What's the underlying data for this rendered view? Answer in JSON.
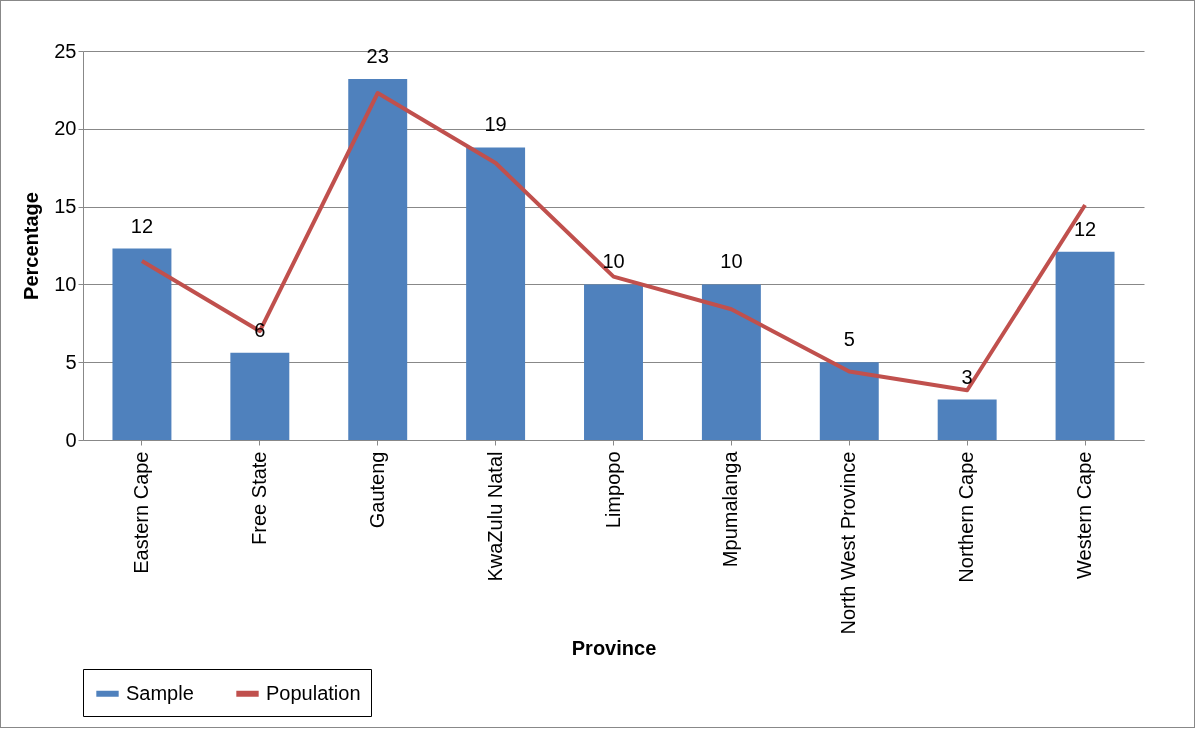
{
  "chart_data": {
    "type": "bar",
    "xlabel": "Province",
    "ylabel": "Percentage",
    "categories": [
      "Eastern Cape",
      "Free State",
      "Gauteng",
      "KwaZulu Natal",
      "Limpopo",
      "Mpumalanga",
      "North West Province",
      "Northern Cape",
      "Western Cape"
    ],
    "series": [
      {
        "name": "Sample",
        "color": "#4f81bd",
        "values": [
          12.3,
          5.6,
          23.2,
          18.8,
          10,
          10,
          5,
          2.6,
          12.1
        ],
        "value_labels": [
          "12",
          "6",
          "23",
          "19",
          "10",
          "10",
          "5",
          "3",
          "12"
        ]
      },
      {
        "name": "Population",
        "type": "line",
        "color": "#c0504d",
        "values": [
          11.5,
          7.0,
          22.3,
          17.8,
          10.5,
          8.4,
          4.4,
          3.2,
          15.1
        ]
      }
    ],
    "ylim": [
      0,
      25
    ],
    "yticks": [
      0,
      5,
      10,
      15,
      20,
      25
    ],
    "grid": "y",
    "legend": "bottom"
  }
}
